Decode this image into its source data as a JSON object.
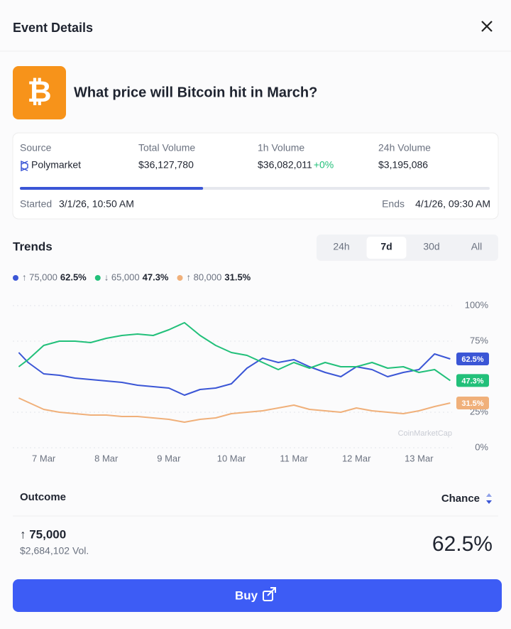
{
  "header": {
    "title": "Event Details"
  },
  "event": {
    "title": "What price will Bitcoin hit in March?"
  },
  "stats": [
    {
      "label": "Source",
      "value": "Polymarket"
    },
    {
      "label": "Total Volume",
      "value": "$36,127,780"
    },
    {
      "label": "1h Volume",
      "value": "$36,082,011",
      "change": "+0%"
    },
    {
      "label": "24h Volume",
      "value": "$3,195,086"
    }
  ],
  "progress": 39,
  "started": {
    "label": "Started",
    "value": "3/1/26, 10:50 AM"
  },
  "ends": {
    "label": "Ends",
    "value": "4/1/26, 09:30 AM"
  },
  "trends": {
    "title": "Trends",
    "tabs": [
      "24h",
      "7d",
      "30d",
      "All"
    ],
    "active_tab": 1
  },
  "chart_data": {
    "type": "line",
    "annotation": "CoinMarketCap",
    "x": [
      6.6,
      6.75,
      7.0,
      7.25,
      7.5,
      7.75,
      8.0,
      8.25,
      8.5,
      8.75,
      9.0,
      9.25,
      9.5,
      9.75,
      10.0,
      10.25,
      10.5,
      10.75,
      11.0,
      11.25,
      11.5,
      11.75,
      12.0,
      12.25,
      12.5,
      12.75,
      13.0,
      13.25,
      13.5
    ],
    "series": [
      {
        "name": "↑ 75,000",
        "color": "#3b56d6",
        "value_label": "62.5%",
        "values": [
          67,
          60,
          52,
          51,
          49,
          48,
          47,
          46,
          44,
          43,
          42,
          37,
          41,
          42,
          45,
          56,
          63,
          60,
          62,
          57,
          53,
          50,
          57,
          55,
          50,
          53,
          55,
          66,
          62.5
        ]
      },
      {
        "name": "↓ 65,000",
        "color": "#22c07a",
        "value_label": "47.3%",
        "values": [
          57,
          62,
          72,
          75,
          75,
          74,
          77,
          79,
          80,
          79,
          83,
          88,
          79,
          72,
          67,
          65,
          60,
          55,
          60,
          56,
          60,
          57,
          57,
          60,
          56,
          57,
          53,
          55,
          47.3
        ]
      },
      {
        "name": "↑ 80,000",
        "color": "#f0b07a",
        "value_label": "31.5%",
        "values": [
          35,
          32,
          27,
          25,
          24,
          23,
          23,
          22,
          22,
          21,
          20,
          18,
          20,
          21,
          24,
          25,
          26,
          28,
          30,
          27,
          26,
          25,
          28,
          26,
          25,
          24,
          26,
          29,
          31.5
        ]
      }
    ],
    "xlim": [
      6.55,
      13.53
    ],
    "xticks": [
      {
        "value": 7,
        "label": "7 Mar"
      },
      {
        "value": 8,
        "label": "8 Mar"
      },
      {
        "value": 9,
        "label": "9 Mar"
      },
      {
        "value": 10,
        "label": "10 Mar"
      },
      {
        "value": 11,
        "label": "11 Mar"
      },
      {
        "value": 12,
        "label": "12 Mar"
      },
      {
        "value": 13,
        "label": "13 Mar"
      }
    ],
    "ylim": [
      0,
      100
    ],
    "yticks": [
      {
        "value": 0,
        "label": "0%"
      },
      {
        "value": 25,
        "label": "25%"
      },
      {
        "value": 75,
        "label": "75%"
      },
      {
        "value": 100,
        "label": "100%"
      }
    ],
    "grid": true
  },
  "outcomes": {
    "header": {
      "outcome": "Outcome",
      "chance": "Chance"
    },
    "rows": [
      {
        "name": "↑ 75,000",
        "volume": "$2,684,102 Vol.",
        "chance": "62.5%"
      }
    ]
  },
  "button": {
    "label": "Buy"
  }
}
